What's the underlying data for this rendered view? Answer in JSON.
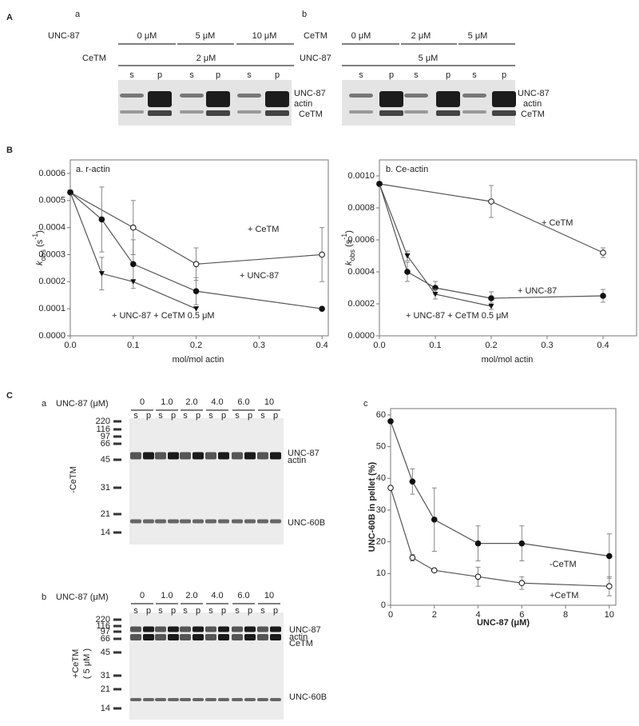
{
  "panels": {
    "A": {
      "label": "A",
      "gels": [
        {
          "label": "a",
          "row1_name": "UNC-87",
          "row1": [
            "0 μM",
            "5 μM",
            "10 μM"
          ],
          "row2_name": "CeTM",
          "row2": [
            "2 μM"
          ],
          "lanes": [
            "s",
            "p",
            "s",
            "p",
            "s",
            "p"
          ],
          "bands": [
            "UNC-87",
            "actin",
            "CeTM"
          ]
        },
        {
          "label": "b",
          "row1_name": "CeTM",
          "row1": [
            "0 μM",
            "2 μM",
            "5 μM"
          ],
          "row2_name": "UNC-87",
          "row2": [
            "5 μM"
          ],
          "lanes": [
            "s",
            "p",
            "s",
            "p",
            "s",
            "p"
          ],
          "bands": [
            "UNC-87",
            "actin",
            "CeTM"
          ]
        }
      ]
    },
    "B": {
      "label": "B"
    },
    "C": {
      "label": "C",
      "gels": [
        {
          "label": "a",
          "header": "UNC-87 (μM)",
          "concentrations": [
            "0",
            "1.0",
            "2.0",
            "4.0",
            "6.0",
            "10"
          ],
          "lanes": [
            "s",
            "p",
            "s",
            "p",
            "s",
            "p",
            "s",
            "p",
            "s",
            "p",
            "s",
            "p"
          ],
          "markers": [
            "220",
            "116",
            "97",
            "66",
            "45",
            "31",
            "21",
            "14"
          ],
          "side_label": "-CeTM",
          "bands": [
            "UNC-87",
            "actin",
            "UNC-60B"
          ]
        },
        {
          "label": "b",
          "header": "UNC-87 (μM)",
          "concentrations": [
            "0",
            "1.0",
            "2.0",
            "4.0",
            "6.0",
            "10"
          ],
          "lanes": [
            "s",
            "p",
            "s",
            "p",
            "s",
            "p",
            "s",
            "p",
            "s",
            "p",
            "s",
            "p"
          ],
          "markers": [
            "220",
            "116",
            "97",
            "66",
            "45",
            "31",
            "21",
            "14"
          ],
          "side_label": "+CeTM",
          "side_note": "( 5 μM )",
          "bands": [
            "UNC-87",
            "actin",
            "CeTM",
            "UNC-60B"
          ]
        }
      ]
    }
  },
  "chart_data": [
    {
      "type": "line",
      "title": "a. r-actin",
      "x_label": "mol/mol actin",
      "y_label": [
        "k",
        "obs",
        " (s",
        "-1",
        ")"
      ],
      "xlim": [
        0,
        0.41
      ],
      "ylim": [
        0,
        0.00065
      ],
      "xticks": [
        {
          "value": 0,
          "label": "0.0"
        },
        0.1,
        0.2,
        0.3,
        0.4
      ],
      "yticks": [
        {
          "value": 0,
          "label": "0.0000"
        },
        0.0001,
        0.0002,
        0.0003,
        0.0004,
        0.0005,
        0.0006
      ],
      "series": [
        {
          "name": "+ CeTM",
          "color": "#555555",
          "marker": "open-circle",
          "x": [
            0,
            0.1,
            0.2,
            0.4
          ],
          "values": [
            0.00053,
            0.0004,
            0.000265,
            0.0003
          ],
          "errors": [
            null,
            0.0001,
            6e-05,
            0.0001
          ]
        },
        {
          "name": "+ UNC-87",
          "color": "#555555",
          "marker": "filled-circle",
          "x": [
            0,
            0.05,
            0.1,
            0.2,
            0.4
          ],
          "values": [
            0.00053,
            0.00043,
            0.000265,
            0.000165,
            0.0001
          ],
          "errors": [
            null,
            0.00012,
            9e-05,
            5e-05,
            null
          ]
        },
        {
          "name": "+ UNC-87 + CeTM 0.5 μM",
          "color": "#555555",
          "marker": "filled-triangle",
          "x": [
            0,
            0.05,
            0.1,
            0.2
          ],
          "values": [
            0.00053,
            0.00023,
            0.0002,
            0.0001
          ],
          "errors": [
            null,
            6e-05,
            null,
            null
          ]
        }
      ]
    },
    {
      "type": "line",
      "title": "b. Ce-actin",
      "x_label": "mol/mol actin",
      "y_label": [
        "k",
        "obs",
        " (s",
        "-1",
        ")"
      ],
      "xlim": [
        0,
        0.46
      ],
      "ylim": [
        0,
        0.0011
      ],
      "xticks": [
        {
          "value": 0,
          "label": "0.0"
        },
        0.1,
        0.2,
        0.3,
        0.4
      ],
      "yticks": [
        {
          "value": 0,
          "label": "0.0000"
        },
        0.0002,
        0.0004,
        0.0006,
        0.0008,
        {
          "value": 0.001,
          "label": "0.0010"
        }
      ],
      "series": [
        {
          "name": "+ CeTM",
          "color": "#555555",
          "marker": "open-circle",
          "x": [
            0,
            0.2,
            0.4
          ],
          "values": [
            0.00095,
            0.00084,
            0.00052
          ],
          "errors": [
            null,
            0.0001,
            3e-05
          ]
        },
        {
          "name": "+ UNC-87",
          "color": "#555555",
          "marker": "filled-circle",
          "x": [
            0,
            0.05,
            0.1,
            0.2,
            0.4
          ],
          "values": [
            0.00095,
            0.0004,
            0.0003,
            0.000235,
            0.00025
          ],
          "errors": [
            null,
            6e-05,
            4e-05,
            4e-05,
            4e-05
          ]
        },
        {
          "name": "+ UNC-87 + CeTM 0.5 μM",
          "color": "#555555",
          "marker": "filled-triangle",
          "x": [
            0,
            0.05,
            0.1,
            0.2
          ],
          "values": [
            0.00095,
            0.0005,
            0.00026,
            0.000185
          ],
          "errors": [
            null,
            3e-05,
            3e-05,
            2e-05
          ]
        }
      ]
    },
    {
      "type": "line",
      "title": "c",
      "x_label": "UNC-87 (μM)",
      "y_label": "UNC-60B in pellet (%)",
      "xlim": [
        0,
        10.3
      ],
      "ylim": [
        0,
        62
      ],
      "xticks": [
        0,
        2,
        4,
        6,
        8,
        10
      ],
      "yticks": [
        0,
        10,
        20,
        30,
        40,
        50,
        60
      ],
      "series": [
        {
          "name": "-CeTM",
          "color": "#555555",
          "marker": "filled-circle",
          "x": [
            0,
            1,
            2,
            4,
            6,
            10
          ],
          "values": [
            58,
            39,
            27,
            19.5,
            19.5,
            15.5
          ],
          "errors": [
            null,
            4,
            10,
            5.5,
            5.5,
            7
          ]
        },
        {
          "name": "+CeTM",
          "color": "#555555",
          "marker": "open-circle",
          "x": [
            0,
            1,
            2,
            4,
            6,
            10
          ],
          "values": [
            37,
            15,
            11,
            9,
            7,
            6
          ],
          "errors": [
            null,
            1,
            0.5,
            3,
            2,
            3
          ]
        }
      ]
    }
  ]
}
